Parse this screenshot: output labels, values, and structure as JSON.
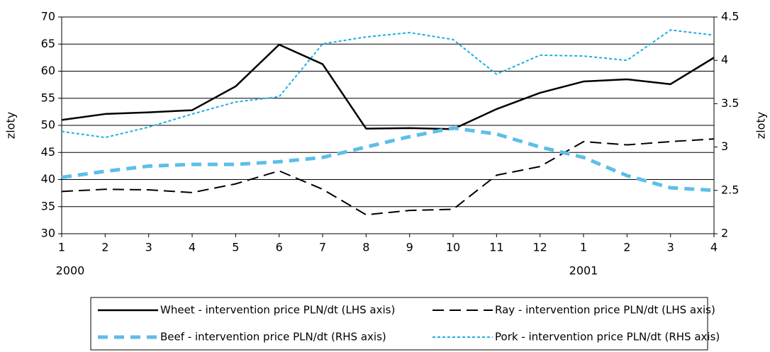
{
  "chart_data": {
    "type": "line",
    "categories": [
      "1",
      "2",
      "3",
      "4",
      "5",
      "6",
      "7",
      "8",
      "9",
      "10",
      "11",
      "12",
      "1",
      "2",
      "3",
      "4"
    ],
    "x_groups": [
      {
        "label": "2000",
        "start": 0
      },
      {
        "label": "2001",
        "start": 12
      }
    ],
    "ylabel": "zloty",
    "y2label": "zloty",
    "ylim": [
      30,
      70
    ],
    "yticks": [
      30,
      35,
      40,
      45,
      50,
      55,
      60,
      65,
      70
    ],
    "y2lim": [
      2,
      4.5
    ],
    "y2ticks": [
      2,
      2.5,
      3,
      3.5,
      4,
      4.5
    ],
    "grid": true,
    "series": [
      {
        "name": "Wheet - intervention price PLN/dt (LHS axis)",
        "color": "#000000",
        "line_style": "solid",
        "values": [
          51,
          52.1,
          52.4,
          52.8,
          57.2,
          64.9,
          61.3,
          49.4,
          49.5,
          49.3,
          53,
          56,
          58.1,
          58.5,
          57.6,
          62.5
        ]
      },
      {
        "name": "Ray - intervention price PLN/dt (LHS axis)",
        "color": "#000000",
        "line_style": "dashed",
        "values": [
          37.8,
          38.2,
          38.1,
          37.6,
          39.2,
          41.6,
          38.2,
          33.5,
          34.3,
          34.5,
          40.8,
          42.4,
          47,
          46.4,
          47,
          47.5
        ]
      },
      {
        "name": "Beef - intervention price PLN/dt (RHS axis)",
        "color": "#5bbfe8",
        "line_style": "thick-dashed",
        "axis": "y2",
        "values": [
          2.65,
          2.72,
          2.78,
          2.8,
          2.8,
          2.83,
          2.88,
          3.0,
          3.12,
          3.22,
          3.15,
          3.0,
          2.88,
          2.67,
          2.53,
          2.5
        ]
      },
      {
        "name": "Pork - intervention price PLN/dt (RHS axis)",
        "color": "#1aaee0",
        "line_style": "dotted",
        "axis": "y2",
        "values": [
          3.18,
          3.11,
          3.23,
          3.38,
          3.52,
          3.58,
          4.19,
          4.27,
          4.32,
          4.24,
          3.84,
          4.06,
          4.05,
          4.0,
          4.35,
          4.29
        ]
      }
    ]
  }
}
